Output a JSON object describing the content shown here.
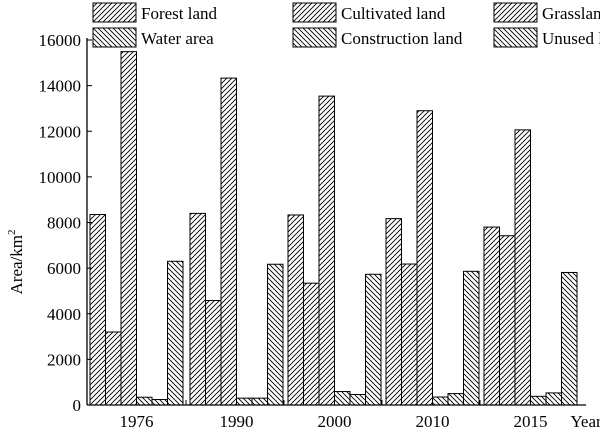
{
  "chart_data": {
    "type": "bar",
    "title": "",
    "xlabel": "Year",
    "ylabel": "Area/km",
    "ylabel_superscript": "2",
    "ylim": [
      0,
      16000
    ],
    "yticks": [
      0,
      2000,
      4000,
      6000,
      8000,
      10000,
      12000,
      14000,
      16000
    ],
    "categories": [
      "1976",
      "1990",
      "2000",
      "2010",
      "2015"
    ],
    "legend_position": "top",
    "grid": false,
    "series": [
      {
        "name": "Forest land",
        "values": [
          8350,
          8400,
          8330,
          8170,
          7800
        ]
      },
      {
        "name": "Cultivated land",
        "values": [
          3200,
          4580,
          5340,
          6180,
          7420
        ]
      },
      {
        "name": "Grassland",
        "values": [
          15490,
          14330,
          13540,
          12900,
          12060
        ]
      },
      {
        "name": "Water area",
        "values": [
          340,
          300,
          590,
          350,
          380
        ]
      },
      {
        "name": "Construction land",
        "values": [
          240,
          300,
          460,
          500,
          530
        ]
      },
      {
        "name": "Unused land",
        "values": [
          6300,
          6170,
          5730,
          5860,
          5810
        ]
      }
    ]
  }
}
